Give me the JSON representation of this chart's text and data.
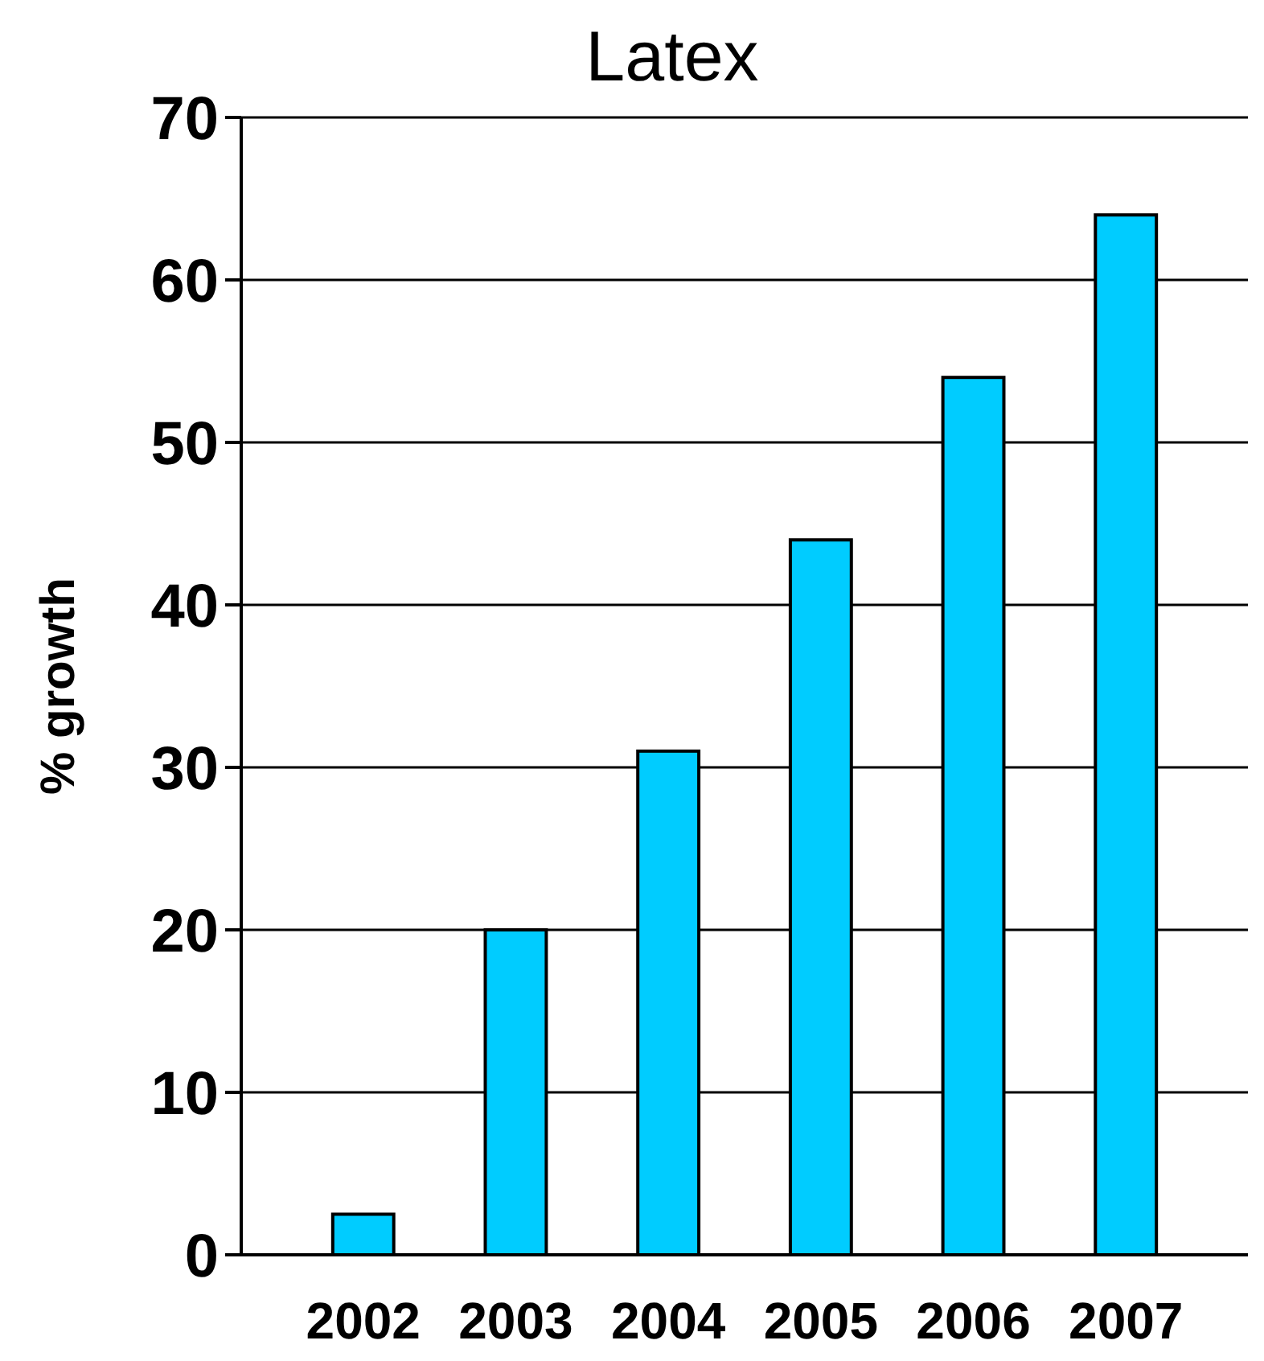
{
  "chart_data": {
    "type": "bar",
    "title": "Latex",
    "ylabel": "% growth",
    "categories": [
      "2002",
      "2003",
      "2004",
      "2005",
      "2006",
      "2007"
    ],
    "values": [
      2.5,
      20,
      31,
      44,
      54,
      64
    ],
    "color": "#00ccff",
    "ylim": [
      0,
      70
    ],
    "yticks": [
      0,
      10,
      20,
      30,
      40,
      50,
      60,
      70
    ],
    "grid": "y"
  }
}
